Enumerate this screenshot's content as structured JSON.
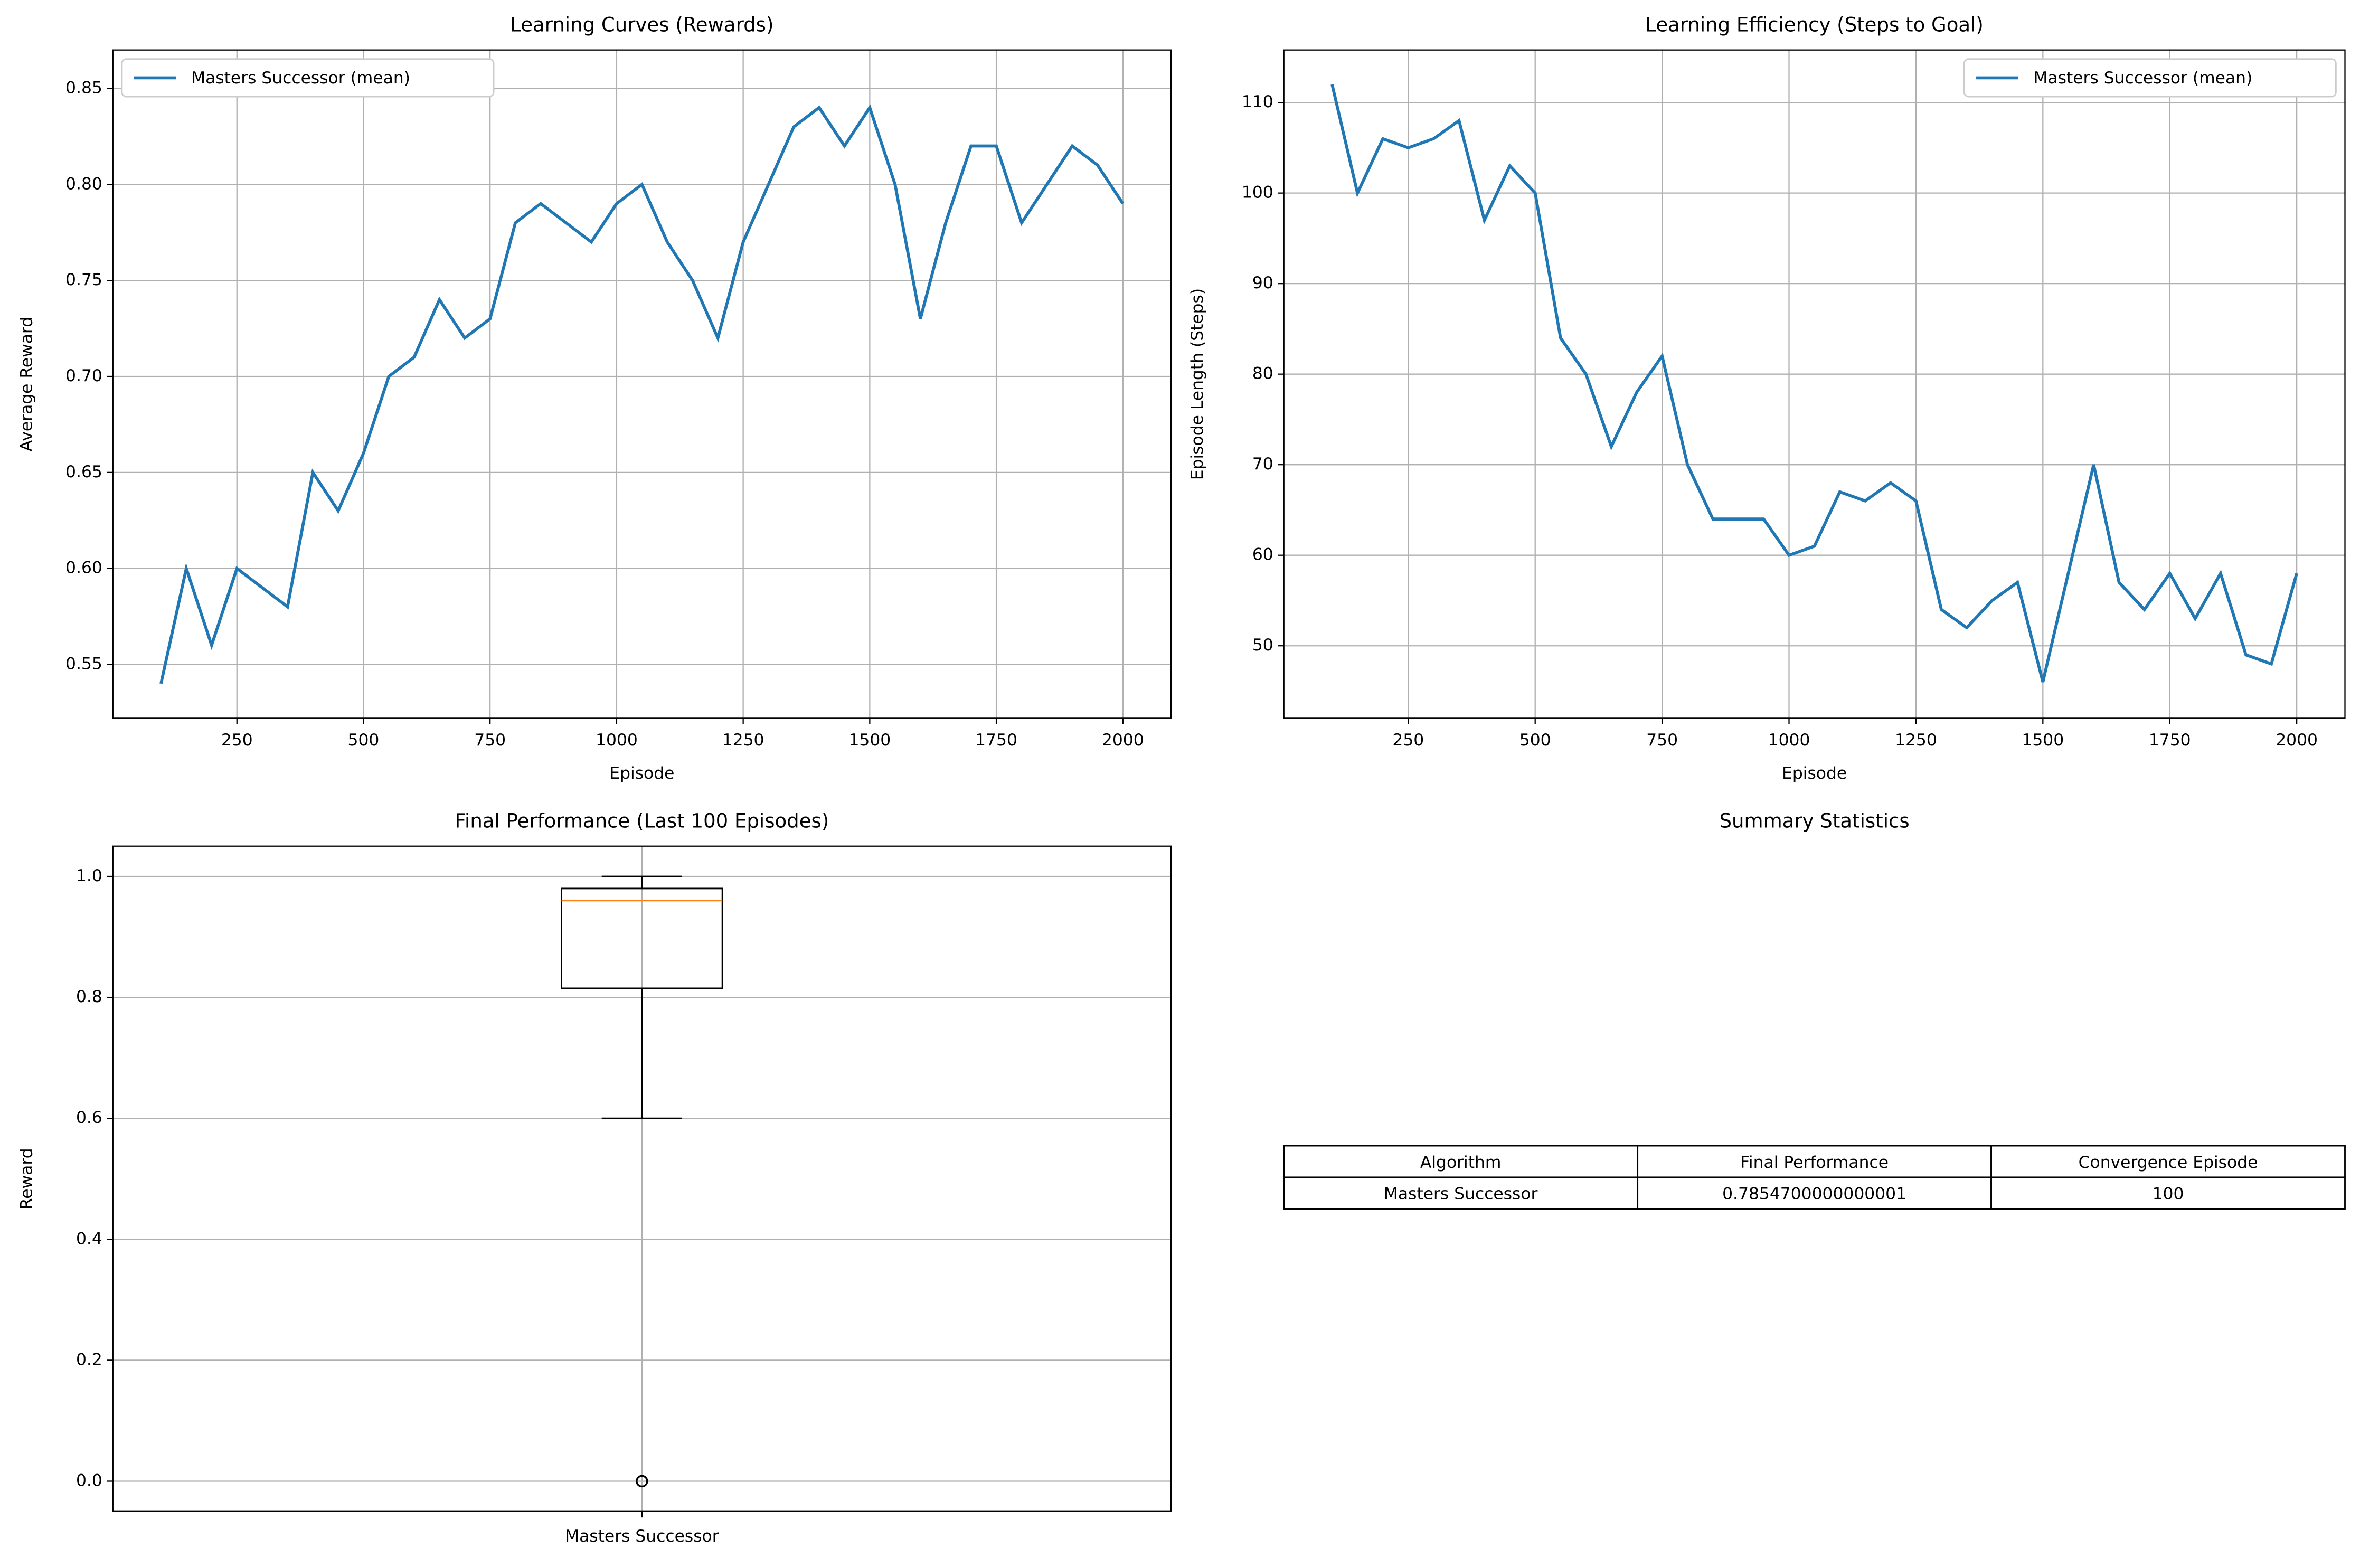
{
  "chart_data": [
    {
      "type": "line",
      "title": "Learning Curves (Rewards)",
      "x_label": "Episode",
      "y_label": "Average Reward",
      "x": [
        100,
        150,
        200,
        250,
        300,
        350,
        400,
        450,
        500,
        550,
        600,
        650,
        700,
        750,
        800,
        850,
        900,
        950,
        1000,
        1050,
        1100,
        1150,
        1200,
        1250,
        1300,
        1350,
        1400,
        1450,
        1500,
        1550,
        1600,
        1650,
        1700,
        1750,
        1800,
        1850,
        1900,
        1950,
        2000
      ],
      "series": [
        {
          "name": "Masters Successor (mean)",
          "color": "#1f77b4",
          "values": [
            0.54,
            0.6,
            0.56,
            0.6,
            0.59,
            0.58,
            0.65,
            0.63,
            0.66,
            0.7,
            0.71,
            0.74,
            0.72,
            0.73,
            0.78,
            0.79,
            0.78,
            0.77,
            0.79,
            0.8,
            0.77,
            0.75,
            0.72,
            0.77,
            0.8,
            0.83,
            0.84,
            0.82,
            0.84,
            0.8,
            0.73,
            0.78,
            0.82,
            0.82,
            0.78,
            0.8,
            0.82,
            0.81,
            0.79
          ]
        }
      ],
      "xlim": [
        5,
        2095
      ],
      "xticks": [
        250,
        500,
        750,
        1000,
        1250,
        1500,
        1750,
        2000
      ],
      "ylim": [
        0.522,
        0.87
      ],
      "yticks": [
        0.55,
        {
          "value": 0.6,
          "label": "0.60"
        },
        0.65,
        {
          "value": 0.7,
          "label": "0.70"
        },
        0.75,
        {
          "value": 0.8,
          "label": "0.80"
        },
        0.85
      ],
      "grid": true,
      "legend": "upper left"
    },
    {
      "type": "line",
      "title": "Learning Efficiency (Steps to Goal)",
      "x_label": "Episode",
      "y_label": "Episode Length (Steps)",
      "x": [
        100,
        150,
        200,
        250,
        300,
        350,
        400,
        450,
        500,
        550,
        600,
        650,
        700,
        750,
        800,
        850,
        900,
        950,
        1000,
        1050,
        1100,
        1150,
        1200,
        1250,
        1300,
        1350,
        1400,
        1450,
        1500,
        1550,
        1600,
        1650,
        1700,
        1750,
        1800,
        1850,
        1900,
        1950,
        2000
      ],
      "series": [
        {
          "name": "Masters Successor (mean)",
          "color": "#1f77b4",
          "values": [
            112,
            100,
            106,
            105,
            106,
            108,
            97,
            103,
            100,
            84,
            80,
            72,
            78,
            82,
            70,
            64,
            64,
            64,
            60,
            61,
            67,
            66,
            68,
            66,
            54,
            52,
            55,
            57,
            46,
            58,
            70,
            57,
            54,
            58,
            53,
            58,
            49,
            48,
            58
          ]
        }
      ],
      "xlim": [
        5,
        2095
      ],
      "xticks": [
        250,
        500,
        750,
        1000,
        1250,
        1500,
        1750,
        2000
      ],
      "ylim": [
        42,
        115.8
      ],
      "yticks": [
        50,
        60,
        70,
        80,
        90,
        100,
        110
      ],
      "grid": true,
      "legend": "upper right"
    },
    {
      "type": "box",
      "title": "Final Performance (Last 100 Episodes)",
      "y_label": "Reward",
      "categories": [
        "Masters Successor"
      ],
      "boxes": [
        {
          "whislo": 0.6,
          "q1": 0.815,
          "med": 0.96,
          "q3": 0.98,
          "whishi": 1.0,
          "fliers": [
            0
          ]
        }
      ],
      "box_color": "#000000",
      "median_color": "#ff7f0e",
      "ylim": [
        -0.05,
        1.05
      ],
      "yticks": [
        {
          "value": 0,
          "label": "0.0"
        },
        0.2,
        0.4,
        0.6,
        0.8,
        {
          "value": 1,
          "label": "1.0"
        }
      ],
      "grid": true
    },
    {
      "type": "table",
      "title": "Summary Statistics",
      "columns": [
        "Algorithm",
        "Final Performance",
        "Convergence Episode"
      ],
      "rows": [
        [
          "Masters Successor",
          "0.7854700000000001",
          "100"
        ]
      ]
    }
  ]
}
